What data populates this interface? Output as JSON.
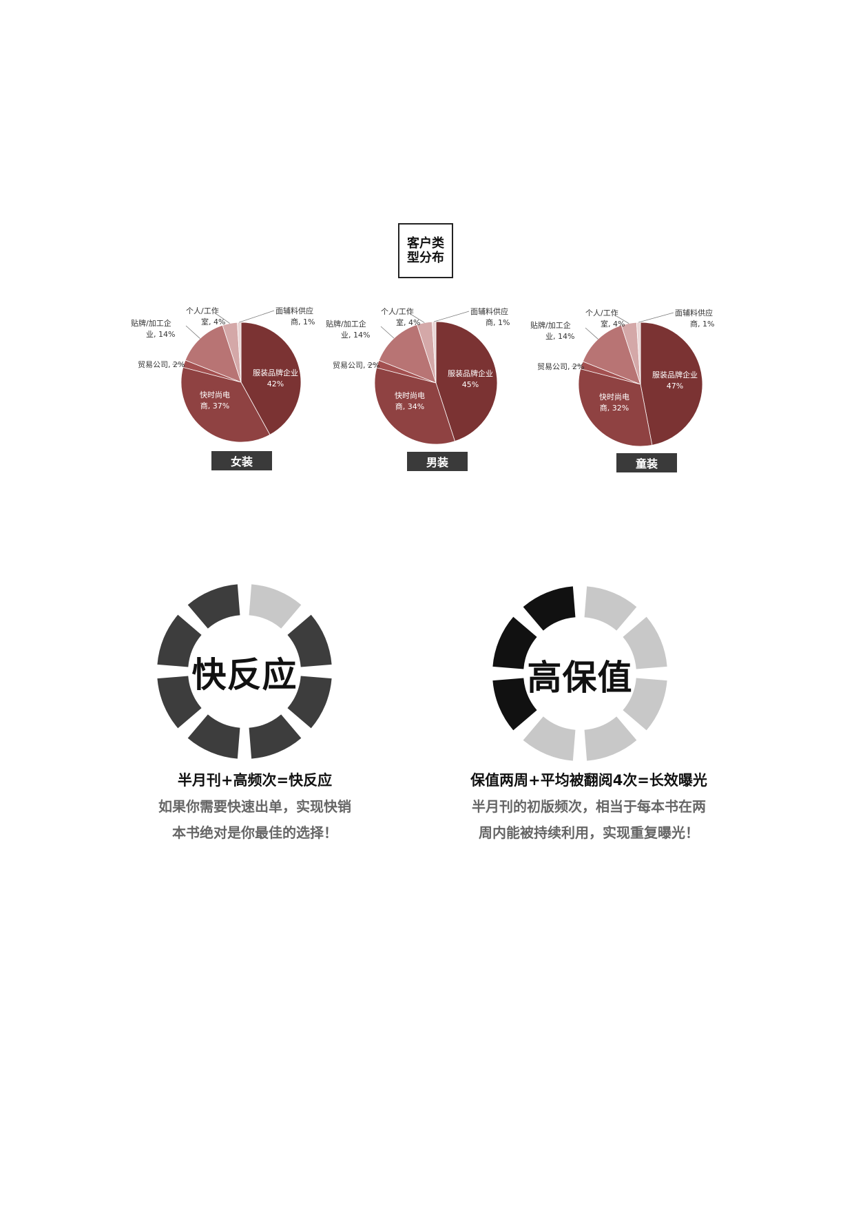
{
  "title": "客户类型分布",
  "charts": [
    {
      "tag": "女装"
    },
    {
      "tag": "男装"
    },
    {
      "tag": "童装"
    }
  ],
  "chart_data": [
    {
      "type": "pie",
      "title": "女装",
      "slices": [
        {
          "label": "服装品牌企业",
          "value": 42,
          "color": "#7b3333"
        },
        {
          "label": "快时尚电商",
          "value": 37,
          "color": "#8f4242"
        },
        {
          "label": "贸易公司",
          "value": 2,
          "color": "#a35050"
        },
        {
          "label": "贴牌/加工企业",
          "value": 14,
          "color": "#b87474"
        },
        {
          "label": "个人/工作室",
          "value": 4,
          "color": "#d4a8a8"
        },
        {
          "label": "面辅料供应商",
          "value": 1,
          "color": "#e9d5d5"
        }
      ]
    },
    {
      "type": "pie",
      "title": "男装",
      "slices": [
        {
          "label": "服装品牌企业",
          "value": 45,
          "color": "#7b3333"
        },
        {
          "label": "快时尚电商",
          "value": 34,
          "color": "#8f4242"
        },
        {
          "label": "贸易公司",
          "value": 2,
          "color": "#a35050"
        },
        {
          "label": "贴牌/加工企业",
          "value": 14,
          "color": "#b87474"
        },
        {
          "label": "个人/工作室",
          "value": 4,
          "color": "#d4a8a8"
        },
        {
          "label": "面辅料供应商",
          "value": 1,
          "color": "#e9d5d5"
        }
      ]
    },
    {
      "type": "pie",
      "title": "童装",
      "slices": [
        {
          "label": "服装品牌企业",
          "value": 47,
          "color": "#7b3333"
        },
        {
          "label": "快时尚电商",
          "value": 32,
          "color": "#8f4242"
        },
        {
          "label": "贸易公司",
          "value": 2,
          "color": "#a35050"
        },
        {
          "label": "贴牌/加工企业",
          "value": 14,
          "color": "#b87474"
        },
        {
          "label": "个人/工作室",
          "value": 4,
          "color": "#d4a8a8"
        },
        {
          "label": "面辅料供应商",
          "value": 1,
          "color": "#e9d5d5"
        }
      ]
    }
  ],
  "features": [
    {
      "word": "快反应",
      "filled_segments": 7,
      "total_segments": 8,
      "filled_color": "#3d3d3d",
      "empty_color": "#c8c8c8",
      "heading": "半月刊+高频次=快反应",
      "line1": "如果你需要快速出单，实现快销",
      "line2": "本书绝对是你最佳的选择！"
    },
    {
      "word": "高保值",
      "filled_segments": 3,
      "total_segments": 8,
      "filled_color": "#111111",
      "empty_color": "#c8c8c8",
      "heading": "保值两周+平均被翻阅4次=长效曝光",
      "line1": "半月刊的初版频次，相当于每本书在两",
      "line2": "周内能被持续利用，实现重复曝光！"
    }
  ]
}
